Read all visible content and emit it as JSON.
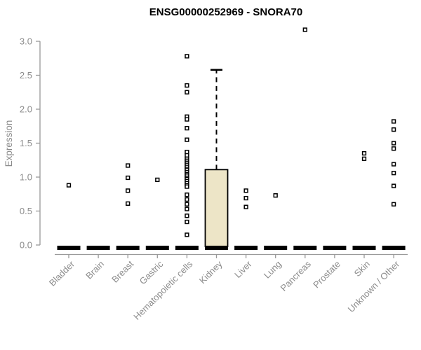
{
  "chart_data": {
    "type": "box",
    "title": "ENSG00000252969 - SNORA70",
    "ylabel": "Expression",
    "xlabel": "",
    "ylim": [
      0,
      3.3
    ],
    "grid": false,
    "legend": "none",
    "yticks": [
      {
        "v": 0.0,
        "label": "0.0"
      },
      {
        "v": 0.5,
        "label": "0.5"
      },
      {
        "v": 1.0,
        "label": "1.0"
      },
      {
        "v": 1.5,
        "label": "1.5"
      },
      {
        "v": 2.0,
        "label": "2.0"
      },
      {
        "v": 2.5,
        "label": "2.5"
      },
      {
        "v": 3.0,
        "label": "3.0"
      }
    ],
    "categories": [
      "Bladder",
      "Brain",
      "Breast",
      "Gastric",
      "Hematopoietic cells",
      "Kidney",
      "Liver",
      "Lung",
      "Pancreas",
      "Prostate",
      "Skin",
      "Unknown / Other"
    ],
    "boxes": [
      {
        "category": "Bladder",
        "q1": 0,
        "median": 0,
        "q3": 0,
        "whisker_low": 0,
        "whisker_high": 0,
        "outliers": [
          0.88
        ]
      },
      {
        "category": "Brain",
        "q1": 0,
        "median": 0,
        "q3": 0,
        "whisker_low": 0,
        "whisker_high": 0,
        "outliers": []
      },
      {
        "category": "Breast",
        "q1": 0,
        "median": 0,
        "q3": 0,
        "whisker_low": 0,
        "whisker_high": 0,
        "outliers": [
          1.17,
          0.99,
          0.8,
          0.61
        ]
      },
      {
        "category": "Gastric",
        "q1": 0,
        "median": 0,
        "q3": 0,
        "whisker_low": 0,
        "whisker_high": 0,
        "outliers": [
          0.96
        ]
      },
      {
        "category": "Hematopoietic cells",
        "q1": 0,
        "median": 0,
        "q3": 0,
        "whisker_low": 0,
        "whisker_high": 0,
        "outliers": [
          2.78,
          2.35,
          2.25,
          1.89,
          1.85,
          1.72,
          1.55,
          1.37,
          1.32,
          1.27,
          1.24,
          1.21,
          1.18,
          1.15,
          1.12,
          1.1,
          1.07,
          1.04,
          1.02,
          0.99,
          0.97,
          0.94,
          0.91,
          0.88,
          0.86,
          0.74,
          0.67,
          0.6,
          0.53,
          0.43,
          0.34,
          0.15
        ]
      },
      {
        "category": "Kidney",
        "q1": 0,
        "median": 0,
        "q3": 1.11,
        "whisker_low": 0,
        "whisker_high": 2.58,
        "outliers": []
      },
      {
        "category": "Liver",
        "q1": 0,
        "median": 0,
        "q3": 0,
        "whisker_low": 0,
        "whisker_high": 0,
        "outliers": [
          0.8,
          0.69,
          0.56
        ]
      },
      {
        "category": "Lung",
        "q1": 0,
        "median": 0,
        "q3": 0,
        "whisker_low": 0,
        "whisker_high": 0,
        "outliers": [
          0.73
        ]
      },
      {
        "category": "Pancreas",
        "q1": 0,
        "median": 0,
        "q3": 0,
        "whisker_low": 0,
        "whisker_high": 0,
        "outliers": [
          3.17
        ]
      },
      {
        "category": "Prostate",
        "q1": 0,
        "median": 0,
        "q3": 0,
        "whisker_low": 0,
        "whisker_high": 0,
        "outliers": []
      },
      {
        "category": "Skin",
        "q1": 0,
        "median": 0,
        "q3": 0,
        "whisker_low": 0,
        "whisker_high": 0,
        "outliers": [
          1.35,
          1.27
        ]
      },
      {
        "category": "Unknown / Other",
        "q1": 0,
        "median": 0,
        "q3": 0,
        "whisker_low": 0,
        "whisker_high": 0,
        "outliers": [
          1.82,
          1.7,
          1.5,
          1.42,
          1.19,
          1.06,
          0.87,
          0.6
        ]
      }
    ],
    "colors": {
      "background": "#ffffff",
      "box_fill": "#ede5c7",
      "box_stroke": "#000000",
      "median": "#000000",
      "whisker": "#000000",
      "outlier_stroke": "#000000",
      "outlier_fill": "#ffffff",
      "axis": "#999999",
      "tick_label": "#8c8c8c",
      "title": "#000000"
    }
  }
}
